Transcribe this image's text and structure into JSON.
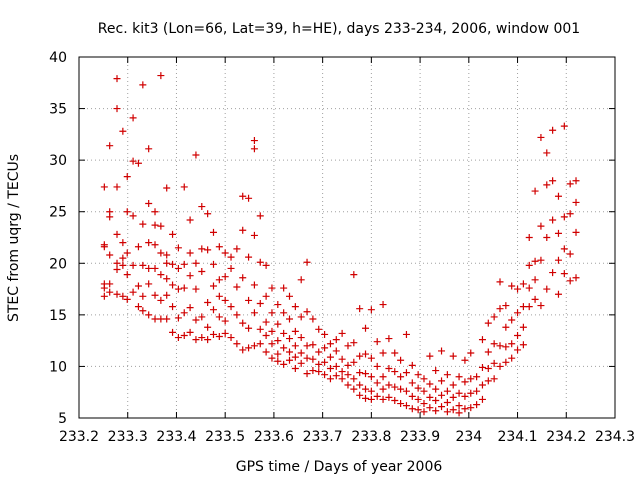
{
  "chart_data": {
    "type": "scatter",
    "title": "Rec. kit3 (Lon=66, Lat=39, h=HE), days 233-234, 2006, window 001",
    "xlabel": "GPS time / Days of year 2006",
    "ylabel": "STEC from uqrg / TECUs",
    "xlim": [
      233.2,
      234.3
    ],
    "ylim": [
      5,
      40
    ],
    "x_ticks": [
      233.2,
      233.3,
      233.4,
      233.5,
      233.6,
      233.7,
      233.8,
      233.9,
      234.0,
      234.1,
      234.2,
      234.3
    ],
    "x_tick_labels": [
      "233.2",
      "233.3",
      "233.4",
      "233.5",
      "233.6",
      "233.7",
      "233.8",
      "233.9",
      "234",
      "234.1",
      "234.2",
      "234.3"
    ],
    "y_ticks": [
      5,
      10,
      15,
      20,
      25,
      30,
      35,
      40
    ],
    "y_tick_labels": [
      "5",
      "10",
      "15",
      "20",
      "25",
      "30",
      "35",
      "40"
    ],
    "grid": true,
    "legend": "none",
    "marker": "plus",
    "marker_color": "#d00000",
    "points": [
      [
        233.252,
        27.4
      ],
      [
        233.252,
        21.8
      ],
      [
        233.252,
        21.6
      ],
      [
        233.252,
        18.0
      ],
      [
        233.252,
        16.8
      ],
      [
        233.252,
        17.6
      ],
      [
        233.263,
        31.4
      ],
      [
        233.263,
        24.5
      ],
      [
        233.263,
        25.0
      ],
      [
        233.263,
        20.8
      ],
      [
        233.263,
        18.0
      ],
      [
        233.263,
        17.2
      ],
      [
        233.278,
        37.9
      ],
      [
        233.278,
        35.0
      ],
      [
        233.278,
        27.4
      ],
      [
        233.278,
        22.8
      ],
      [
        233.278,
        20.0
      ],
      [
        233.278,
        19.4
      ],
      [
        233.278,
        17.0
      ],
      [
        233.29,
        32.8
      ],
      [
        233.29,
        22.0
      ],
      [
        233.29,
        20.5
      ],
      [
        233.29,
        19.8
      ],
      [
        233.29,
        16.8
      ],
      [
        233.299,
        28.4
      ],
      [
        233.299,
        25.0
      ],
      [
        233.299,
        21.0
      ],
      [
        233.299,
        18.9
      ],
      [
        233.299,
        16.5
      ],
      [
        233.311,
        34.1
      ],
      [
        233.311,
        29.9
      ],
      [
        233.311,
        24.6
      ],
      [
        233.311,
        19.8
      ],
      [
        233.311,
        17.2
      ],
      [
        233.322,
        29.7
      ],
      [
        233.322,
        21.6
      ],
      [
        233.322,
        17.8
      ],
      [
        233.322,
        15.8
      ],
      [
        233.331,
        37.3
      ],
      [
        233.331,
        23.8
      ],
      [
        233.331,
        15.4
      ],
      [
        233.331,
        19.8
      ],
      [
        233.331,
        16.8
      ],
      [
        233.343,
        31.1
      ],
      [
        233.343,
        25.8
      ],
      [
        233.343,
        22.0
      ],
      [
        233.343,
        19.5
      ],
      [
        233.343,
        15.0
      ],
      [
        233.343,
        18.0
      ],
      [
        233.356,
        25.0
      ],
      [
        233.356,
        23.7
      ],
      [
        233.356,
        21.8
      ],
      [
        233.356,
        19.5
      ],
      [
        233.356,
        16.9
      ],
      [
        233.356,
        14.6
      ],
      [
        233.368,
        38.2
      ],
      [
        233.368,
        23.6
      ],
      [
        233.368,
        21.0
      ],
      [
        233.368,
        18.9
      ],
      [
        233.368,
        16.4
      ],
      [
        233.368,
        14.6
      ],
      [
        233.38,
        27.3
      ],
      [
        233.38,
        20.8
      ],
      [
        233.38,
        20.0
      ],
      [
        233.38,
        18.5
      ],
      [
        233.38,
        16.9
      ],
      [
        233.38,
        14.6
      ],
      [
        233.392,
        22.8
      ],
      [
        233.392,
        19.9
      ],
      [
        233.392,
        17.9
      ],
      [
        233.392,
        15.8
      ],
      [
        233.392,
        13.3
      ],
      [
        233.404,
        21.5
      ],
      [
        233.404,
        19.5
      ],
      [
        233.404,
        17.5
      ],
      [
        233.404,
        14.7
      ],
      [
        233.404,
        12.8
      ],
      [
        233.416,
        27.4
      ],
      [
        233.416,
        19.9
      ],
      [
        233.416,
        17.6
      ],
      [
        233.416,
        15.2
      ],
      [
        233.416,
        13.0
      ],
      [
        233.428,
        24.2
      ],
      [
        233.428,
        21.0
      ],
      [
        233.428,
        18.8
      ],
      [
        233.428,
        15.7
      ],
      [
        233.428,
        13.3
      ],
      [
        233.44,
        30.5
      ],
      [
        233.44,
        20.0
      ],
      [
        233.44,
        17.5
      ],
      [
        233.44,
        14.5
      ],
      [
        233.44,
        12.6
      ],
      [
        233.452,
        25.5
      ],
      [
        233.452,
        21.4
      ],
      [
        233.452,
        19.2
      ],
      [
        233.452,
        14.8
      ],
      [
        233.452,
        12.8
      ],
      [
        233.464,
        24.8
      ],
      [
        233.464,
        21.3
      ],
      [
        233.464,
        16.2
      ],
      [
        233.464,
        13.8
      ],
      [
        233.464,
        12.6
      ],
      [
        233.476,
        23.0
      ],
      [
        233.476,
        19.9
      ],
      [
        233.476,
        17.8
      ],
      [
        233.476,
        15.5
      ],
      [
        233.476,
        13.1
      ],
      [
        233.488,
        21.6
      ],
      [
        233.488,
        18.4
      ],
      [
        233.488,
        16.8
      ],
      [
        233.488,
        14.8
      ],
      [
        233.488,
        12.9
      ],
      [
        233.5,
        21.0
      ],
      [
        233.5,
        18.7
      ],
      [
        233.5,
        16.4
      ],
      [
        233.5,
        14.4
      ],
      [
        233.5,
        13.2
      ],
      [
        233.512,
        20.6
      ],
      [
        233.512,
        19.5
      ],
      [
        233.512,
        15.8
      ],
      [
        233.512,
        12.8
      ],
      [
        233.524,
        21.4
      ],
      [
        233.524,
        17.7
      ],
      [
        233.524,
        15.0
      ],
      [
        233.524,
        12.2
      ],
      [
        233.536,
        26.5
      ],
      [
        233.536,
        23.2
      ],
      [
        233.536,
        18.6
      ],
      [
        233.536,
        14.2
      ],
      [
        233.536,
        11.6
      ],
      [
        233.548,
        26.3
      ],
      [
        233.548,
        20.6
      ],
      [
        233.548,
        16.4
      ],
      [
        233.548,
        13.7
      ],
      [
        233.548,
        11.8
      ],
      [
        233.56,
        31.9
      ],
      [
        233.56,
        31.1
      ],
      [
        233.56,
        22.7
      ],
      [
        233.56,
        17.9
      ],
      [
        233.56,
        15.2
      ],
      [
        233.56,
        12.0
      ],
      [
        233.572,
        24.6
      ],
      [
        233.572,
        20.1
      ],
      [
        233.572,
        16.1
      ],
      [
        233.572,
        13.6
      ],
      [
        233.572,
        12.2
      ],
      [
        233.584,
        19.8
      ],
      [
        233.584,
        16.8
      ],
      [
        233.584,
        14.3
      ],
      [
        233.584,
        13.0
      ],
      [
        233.584,
        11.4
      ],
      [
        233.596,
        17.6
      ],
      [
        233.596,
        15.2
      ],
      [
        233.596,
        13.4
      ],
      [
        233.596,
        12.2
      ],
      [
        233.596,
        10.8
      ],
      [
        233.608,
        16.0
      ],
      [
        233.608,
        14.1
      ],
      [
        233.608,
        12.5
      ],
      [
        233.608,
        11.2
      ],
      [
        233.608,
        10.5
      ],
      [
        233.62,
        17.6
      ],
      [
        233.62,
        15.2
      ],
      [
        233.62,
        13.2
      ],
      [
        233.62,
        11.8
      ],
      [
        233.62,
        10.2
      ],
      [
        233.632,
        16.8
      ],
      [
        233.632,
        14.6
      ],
      [
        233.632,
        12.7
      ],
      [
        233.632,
        11.4
      ],
      [
        233.632,
        10.6
      ],
      [
        233.644,
        15.8
      ],
      [
        233.644,
        13.4
      ],
      [
        233.644,
        12.0
      ],
      [
        233.644,
        10.9
      ],
      [
        233.644,
        9.8
      ],
      [
        233.656,
        18.4
      ],
      [
        233.656,
        14.8
      ],
      [
        233.656,
        12.8
      ],
      [
        233.656,
        11.3
      ],
      [
        233.656,
        10.3
      ],
      [
        233.668,
        20.1
      ],
      [
        233.668,
        15.3
      ],
      [
        233.668,
        12.0
      ],
      [
        233.668,
        10.8
      ],
      [
        233.668,
        9.3
      ],
      [
        233.68,
        14.6
      ],
      [
        233.68,
        12.1
      ],
      [
        233.68,
        10.7
      ],
      [
        233.68,
        9.6
      ],
      [
        233.692,
        13.6
      ],
      [
        233.692,
        11.4
      ],
      [
        233.692,
        10.2
      ],
      [
        233.692,
        9.5
      ],
      [
        233.704,
        13.1
      ],
      [
        233.704,
        11.8
      ],
      [
        233.704,
        10.4
      ],
      [
        233.704,
        9.2
      ],
      [
        233.716,
        12.2
      ],
      [
        233.716,
        10.9
      ],
      [
        233.716,
        9.8
      ],
      [
        233.716,
        8.8
      ],
      [
        233.728,
        12.6
      ],
      [
        233.728,
        11.5
      ],
      [
        233.728,
        10.0
      ],
      [
        233.728,
        9.1
      ],
      [
        233.74,
        13.2
      ],
      [
        233.74,
        10.7
      ],
      [
        233.74,
        9.5
      ],
      [
        233.74,
        8.8
      ],
      [
        233.752,
        12.0
      ],
      [
        233.752,
        10.1
      ],
      [
        233.752,
        9.2
      ],
      [
        233.752,
        8.2
      ],
      [
        233.764,
        18.9
      ],
      [
        233.764,
        12.3
      ],
      [
        233.764,
        10.4
      ],
      [
        233.764,
        8.8
      ],
      [
        233.764,
        7.8
      ],
      [
        233.776,
        15.6
      ],
      [
        233.776,
        11.0
      ],
      [
        233.776,
        9.4
      ],
      [
        233.776,
        8.2
      ],
      [
        233.776,
        7.2
      ],
      [
        233.788,
        13.7
      ],
      [
        233.788,
        11.2
      ],
      [
        233.788,
        9.3
      ],
      [
        233.788,
        7.8
      ],
      [
        233.788,
        6.9
      ],
      [
        233.8,
        15.5
      ],
      [
        233.8,
        10.8
      ],
      [
        233.8,
        9.0
      ],
      [
        233.8,
        7.6
      ],
      [
        233.8,
        6.8
      ],
      [
        233.812,
        12.4
      ],
      [
        233.812,
        10.0
      ],
      [
        233.812,
        8.4
      ],
      [
        233.812,
        7.1
      ],
      [
        233.824,
        16.0
      ],
      [
        233.824,
        11.3
      ],
      [
        233.824,
        9.0
      ],
      [
        233.824,
        7.8
      ],
      [
        233.824,
        6.8
      ],
      [
        233.836,
        12.7
      ],
      [
        233.836,
        9.8
      ],
      [
        233.836,
        8.2
      ],
      [
        233.836,
        7.0
      ],
      [
        233.848,
        11.3
      ],
      [
        233.848,
        9.5
      ],
      [
        233.848,
        8.0
      ],
      [
        233.848,
        6.7
      ],
      [
        233.86,
        10.6
      ],
      [
        233.86,
        9.0
      ],
      [
        233.86,
        7.8
      ],
      [
        233.86,
        6.4
      ],
      [
        233.872,
        13.1
      ],
      [
        233.872,
        9.4
      ],
      [
        233.872,
        7.6
      ],
      [
        233.872,
        6.2
      ],
      [
        233.884,
        10.1
      ],
      [
        233.884,
        8.4
      ],
      [
        233.884,
        7.1
      ],
      [
        233.884,
        5.9
      ],
      [
        233.896,
        9.2
      ],
      [
        233.896,
        7.9
      ],
      [
        233.896,
        6.8
      ],
      [
        233.896,
        5.8
      ],
      [
        233.908,
        8.8
      ],
      [
        233.908,
        7.6
      ],
      [
        233.908,
        6.4
      ],
      [
        233.908,
        5.6
      ],
      [
        233.92,
        11.0
      ],
      [
        233.92,
        8.3
      ],
      [
        233.92,
        7.0
      ],
      [
        233.92,
        6.0
      ],
      [
        233.932,
        9.6
      ],
      [
        233.932,
        7.8
      ],
      [
        233.932,
        6.7
      ],
      [
        233.932,
        5.7
      ],
      [
        233.944,
        11.5
      ],
      [
        233.944,
        8.6
      ],
      [
        233.944,
        7.2
      ],
      [
        233.944,
        6.1
      ],
      [
        233.956,
        9.2
      ],
      [
        233.956,
        7.6
      ],
      [
        233.956,
        6.5
      ],
      [
        233.956,
        5.6
      ],
      [
        233.968,
        11.0
      ],
      [
        233.968,
        8.2
      ],
      [
        233.968,
        7.0
      ],
      [
        233.968,
        5.8
      ],
      [
        233.98,
        9.0
      ],
      [
        233.98,
        7.4
      ],
      [
        233.98,
        6.2
      ],
      [
        233.98,
        5.5
      ],
      [
        233.992,
        10.6
      ],
      [
        233.992,
        8.5
      ],
      [
        233.992,
        7.1
      ],
      [
        233.992,
        5.9
      ],
      [
        234.004,
        11.3
      ],
      [
        234.004,
        8.8
      ],
      [
        234.004,
        7.4
      ],
      [
        234.004,
        6.0
      ],
      [
        234.016,
        9.0
      ],
      [
        234.016,
        7.6
      ],
      [
        234.016,
        6.3
      ],
      [
        234.028,
        12.6
      ],
      [
        234.028,
        9.9
      ],
      [
        234.028,
        8.2
      ],
      [
        234.028,
        6.8
      ],
      [
        234.04,
        14.2
      ],
      [
        234.04,
        11.4
      ],
      [
        234.04,
        9.8
      ],
      [
        234.04,
        8.6
      ],
      [
        234.052,
        14.8
      ],
      [
        234.052,
        12.2
      ],
      [
        234.052,
        10.3
      ],
      [
        234.052,
        8.8
      ],
      [
        234.064,
        18.2
      ],
      [
        234.064,
        15.6
      ],
      [
        234.064,
        12.0
      ],
      [
        234.064,
        10.0
      ],
      [
        234.076,
        15.9
      ],
      [
        234.076,
        13.8
      ],
      [
        234.076,
        11.9
      ],
      [
        234.076,
        10.4
      ],
      [
        234.088,
        17.8
      ],
      [
        234.088,
        14.5
      ],
      [
        234.088,
        12.2
      ],
      [
        234.088,
        10.8
      ],
      [
        234.1,
        17.5
      ],
      [
        234.1,
        15.2
      ],
      [
        234.1,
        13.0
      ],
      [
        234.1,
        11.6
      ],
      [
        234.112,
        18.0
      ],
      [
        234.112,
        15.8
      ],
      [
        234.112,
        13.8
      ],
      [
        234.112,
        12.1
      ],
      [
        234.124,
        22.5
      ],
      [
        234.124,
        19.8
      ],
      [
        234.124,
        17.6
      ],
      [
        234.124,
        15.8
      ],
      [
        234.136,
        27.0
      ],
      [
        234.136,
        20.2
      ],
      [
        234.136,
        18.4
      ],
      [
        234.136,
        16.5
      ],
      [
        234.148,
        32.2
      ],
      [
        234.148,
        23.6
      ],
      [
        234.148,
        20.3
      ],
      [
        234.148,
        15.9
      ],
      [
        234.16,
        30.7
      ],
      [
        234.16,
        27.6
      ],
      [
        234.16,
        22.5
      ],
      [
        234.16,
        17.5
      ],
      [
        234.172,
        32.9
      ],
      [
        234.172,
        28.0
      ],
      [
        234.172,
        24.2
      ],
      [
        234.172,
        19.1
      ],
      [
        234.184,
        26.5
      ],
      [
        234.184,
        22.9
      ],
      [
        234.184,
        20.3
      ],
      [
        234.184,
        17.0
      ],
      [
        234.196,
        33.3
      ],
      [
        234.196,
        24.5
      ],
      [
        234.196,
        21.4
      ],
      [
        234.196,
        19.0
      ],
      [
        234.208,
        27.7
      ],
      [
        234.208,
        24.8
      ],
      [
        234.208,
        20.9
      ],
      [
        234.208,
        18.3
      ],
      [
        234.22,
        28.0
      ],
      [
        234.22,
        25.9
      ],
      [
        234.22,
        23.0
      ],
      [
        234.22,
        18.6
      ]
    ]
  }
}
